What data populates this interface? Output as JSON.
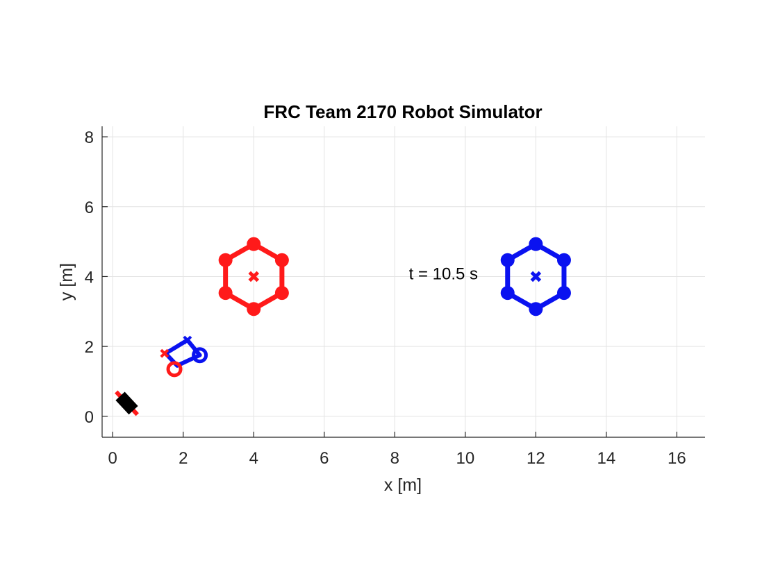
{
  "chart_data": {
    "type": "scatter",
    "title": "FRC Team 2170 Robot Simulator",
    "xlabel": "x [m]",
    "ylabel": "y [m]",
    "xlim": [
      -0.3,
      16.8
    ],
    "ylim": [
      -0.6,
      8.3
    ],
    "xticks": [
      "0",
      "2",
      "4",
      "6",
      "8",
      "10",
      "12",
      "14",
      "16"
    ],
    "yticks": [
      "0",
      "2",
      "4",
      "6",
      "8"
    ],
    "grid": true,
    "annotation": {
      "text": "t = 10.5 s",
      "x": 8.4,
      "y": 4.1
    },
    "colors": {
      "red": "#ff1a1a",
      "blue": "#0a12f0",
      "black": "#000000"
    },
    "objects": [
      {
        "name": "red hexagon",
        "color": "red",
        "center": [
          4.0,
          4.0
        ],
        "vertices": [
          [
            4.0,
            4.93
          ],
          [
            4.8,
            4.47
          ],
          [
            4.8,
            3.53
          ],
          [
            4.0,
            3.07
          ],
          [
            3.2,
            3.53
          ],
          [
            3.2,
            4.47
          ]
        ]
      },
      {
        "name": "blue hexagon",
        "color": "blue",
        "center": [
          12.0,
          4.0
        ],
        "vertices": [
          [
            12.0,
            4.93
          ],
          [
            12.8,
            4.47
          ],
          [
            12.8,
            3.53
          ],
          [
            12.0,
            3.07
          ],
          [
            11.2,
            3.53
          ],
          [
            11.2,
            4.47
          ]
        ]
      },
      {
        "name": "robot",
        "color": "blue",
        "corners": [
          [
            2.12,
            2.18
          ],
          [
            2.47,
            1.75
          ],
          [
            1.83,
            1.45
          ],
          [
            1.5,
            1.8
          ]
        ],
        "red_circle": [
          1.75,
          1.35
        ],
        "red_cross": [
          1.47,
          1.8
        ]
      },
      {
        "name": "black block",
        "color": "black",
        "start": [
          0.1,
          0.7
        ],
        "end": [
          0.7,
          0.05
        ]
      }
    ]
  }
}
